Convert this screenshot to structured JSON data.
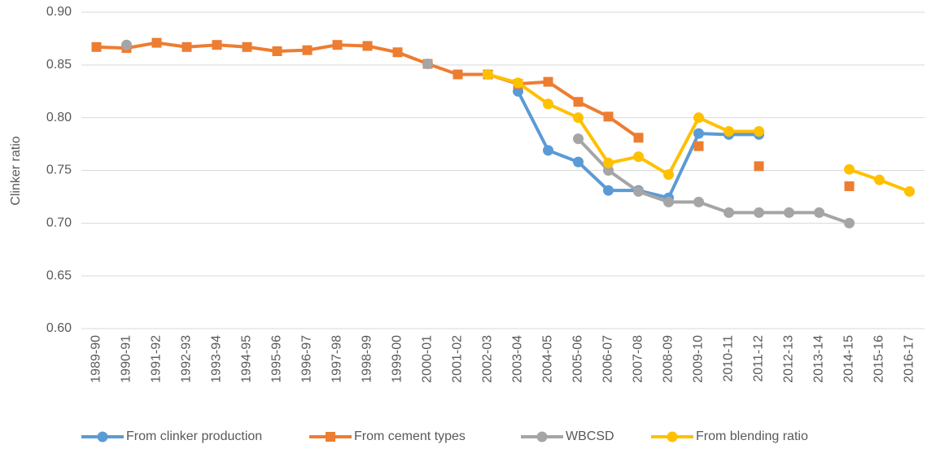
{
  "chart_data": {
    "type": "line",
    "y_label": "Clinker ratio",
    "categories": [
      "1989-90",
      "1990-91",
      "1991-92",
      "1992-93",
      "1993-94",
      "1994-95",
      "1995-96",
      "1996-97",
      "1997-98",
      "1998-99",
      "1999-00",
      "2000-01",
      "2001-02",
      "2002-03",
      "2003-04",
      "2004-05",
      "2005-06",
      "2006-07",
      "2007-08",
      "2008-09",
      "2009-10",
      "2010-11",
      "2011-12",
      "2012-13",
      "2013-14",
      "2014-15",
      "2015-16",
      "2016-17"
    ],
    "series": [
      {
        "name": "From clinker production",
        "color": "#5b9bd5",
        "marker": "circle",
        "values": [
          null,
          null,
          null,
          null,
          null,
          null,
          null,
          null,
          null,
          null,
          null,
          null,
          null,
          null,
          0.825,
          0.769,
          0.758,
          0.731,
          0.731,
          0.724,
          0.785,
          0.784,
          0.784,
          null,
          null,
          null,
          null,
          null
        ]
      },
      {
        "name": "From cement types",
        "color": "#ed7d31",
        "marker": "square",
        "values": [
          0.867,
          0.866,
          0.871,
          0.867,
          0.869,
          0.867,
          0.863,
          0.864,
          0.869,
          0.868,
          0.862,
          0.851,
          0.841,
          0.841,
          0.832,
          0.834,
          0.815,
          0.801,
          0.781,
          null,
          0.773,
          null,
          0.754,
          null,
          null,
          0.735,
          null,
          null
        ]
      },
      {
        "name": "WBCSD",
        "color": "#a5a5a5",
        "marker": "circle",
        "values": [
          null,
          0.869,
          null,
          null,
          null,
          null,
          null,
          null,
          null,
          null,
          null,
          0.851,
          null,
          null,
          null,
          null,
          0.78,
          0.75,
          0.73,
          0.72,
          0.72,
          0.71,
          0.71,
          0.71,
          0.71,
          0.7,
          null,
          null
        ]
      },
      {
        "name": "From blending ratio",
        "color": "#ffc000",
        "marker": "circle",
        "values": [
          null,
          null,
          null,
          null,
          null,
          null,
          null,
          null,
          null,
          null,
          null,
          null,
          null,
          0.841,
          0.833,
          0.813,
          0.8,
          0.757,
          0.763,
          0.746,
          0.8,
          0.787,
          0.787,
          null,
          null,
          0.751,
          0.741,
          0.73
        ]
      }
    ],
    "ylim": [
      0.6,
      0.9
    ],
    "yticks": [
      {
        "value": 0.6,
        "label": "0.60"
      },
      0.65,
      {
        "value": 0.7,
        "label": "0.70"
      },
      0.75,
      {
        "value": 0.8,
        "label": "0.80"
      },
      0.85,
      {
        "value": 0.9,
        "label": "0.90"
      }
    ],
    "grid": true,
    "legend": "bottom"
  }
}
